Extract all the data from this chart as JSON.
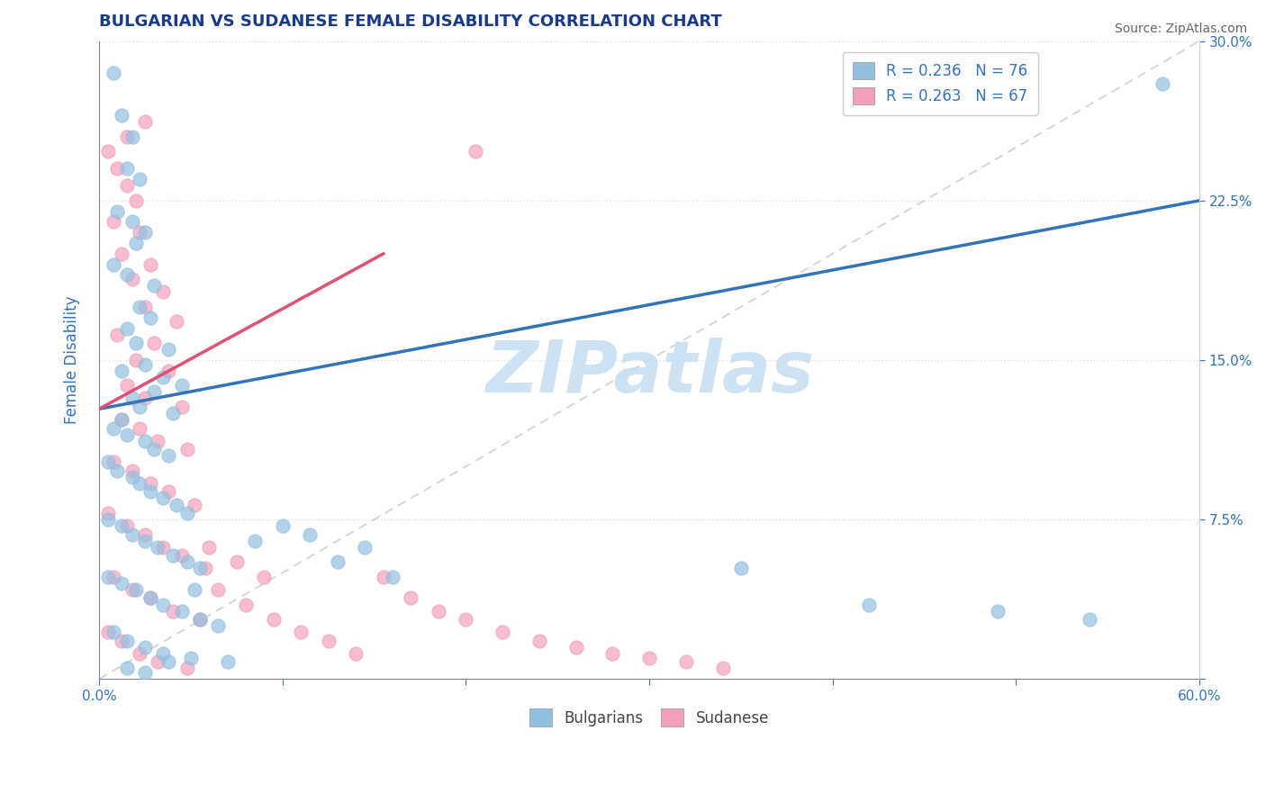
{
  "title": "BULGARIAN VS SUDANESE FEMALE DISABILITY CORRELATION CHART",
  "source_text": "Source: ZipAtlas.com",
  "ylabel": "Female Disability",
  "xlim": [
    0.0,
    0.6
  ],
  "ylim": [
    0.0,
    0.3
  ],
  "xtick_vals": [
    0.0,
    0.1,
    0.2,
    0.3,
    0.4,
    0.5,
    0.6
  ],
  "xtick_labels": [
    "0.0%",
    "",
    "",
    "",
    "",
    "",
    "60.0%"
  ],
  "ytick_vals": [
    0.0,
    0.075,
    0.15,
    0.225,
    0.3
  ],
  "ytick_labels": [
    "",
    "7.5%",
    "15.0%",
    "22.5%",
    "30.0%"
  ],
  "legend_r_label_blue": "R = 0.236   N = 76",
  "legend_r_label_pink": "R = 0.263   N = 67",
  "blue_color": "#92c0e0",
  "pink_color": "#f4a0b8",
  "blue_line_color": "#3373b8",
  "pink_line_color": "#e05070",
  "ref_line_color": "#d0d0d0",
  "watermark_text": "ZIPatlas",
  "watermark_color": "#c5ddf0",
  "title_color": "#1a3a8a",
  "axis_label_color": "#3373b8",
  "tick_color": "#3373b8",
  "bg_color": "#ffffff",
  "grid_color": "#e0e0e0",
  "blue_trend_x": [
    0.0,
    0.6
  ],
  "blue_trend_y": [
    0.127,
    0.225
  ],
  "pink_trend_x": [
    0.0,
    0.155
  ],
  "pink_trend_y": [
    0.127,
    0.2
  ],
  "ref_line_x": [
    0.0,
    0.6
  ],
  "ref_line_y": [
    0.0,
    0.3
  ],
  "blue_dots": [
    [
      0.008,
      0.285
    ],
    [
      0.012,
      0.265
    ],
    [
      0.018,
      0.255
    ],
    [
      0.015,
      0.24
    ],
    [
      0.022,
      0.235
    ],
    [
      0.01,
      0.22
    ],
    [
      0.018,
      0.215
    ],
    [
      0.025,
      0.21
    ],
    [
      0.02,
      0.205
    ],
    [
      0.008,
      0.195
    ],
    [
      0.015,
      0.19
    ],
    [
      0.03,
      0.185
    ],
    [
      0.022,
      0.175
    ],
    [
      0.028,
      0.17
    ],
    [
      0.015,
      0.165
    ],
    [
      0.02,
      0.158
    ],
    [
      0.038,
      0.155
    ],
    [
      0.025,
      0.148
    ],
    [
      0.012,
      0.145
    ],
    [
      0.035,
      0.142
    ],
    [
      0.045,
      0.138
    ],
    [
      0.03,
      0.135
    ],
    [
      0.018,
      0.132
    ],
    [
      0.022,
      0.128
    ],
    [
      0.04,
      0.125
    ],
    [
      0.012,
      0.122
    ],
    [
      0.008,
      0.118
    ],
    [
      0.015,
      0.115
    ],
    [
      0.025,
      0.112
    ],
    [
      0.03,
      0.108
    ],
    [
      0.038,
      0.105
    ],
    [
      0.005,
      0.102
    ],
    [
      0.01,
      0.098
    ],
    [
      0.018,
      0.095
    ],
    [
      0.022,
      0.092
    ],
    [
      0.028,
      0.088
    ],
    [
      0.035,
      0.085
    ],
    [
      0.042,
      0.082
    ],
    [
      0.048,
      0.078
    ],
    [
      0.005,
      0.075
    ],
    [
      0.012,
      0.072
    ],
    [
      0.018,
      0.068
    ],
    [
      0.025,
      0.065
    ],
    [
      0.032,
      0.062
    ],
    [
      0.04,
      0.058
    ],
    [
      0.048,
      0.055
    ],
    [
      0.055,
      0.052
    ],
    [
      0.005,
      0.048
    ],
    [
      0.012,
      0.045
    ],
    [
      0.02,
      0.042
    ],
    [
      0.028,
      0.038
    ],
    [
      0.035,
      0.035
    ],
    [
      0.045,
      0.032
    ],
    [
      0.055,
      0.028
    ],
    [
      0.065,
      0.025
    ],
    [
      0.008,
      0.022
    ],
    [
      0.015,
      0.018
    ],
    [
      0.025,
      0.015
    ],
    [
      0.035,
      0.012
    ],
    [
      0.05,
      0.01
    ],
    [
      0.07,
      0.008
    ],
    [
      0.085,
      0.065
    ],
    [
      0.1,
      0.072
    ],
    [
      0.115,
      0.068
    ],
    [
      0.13,
      0.055
    ],
    [
      0.145,
      0.062
    ],
    [
      0.16,
      0.048
    ],
    [
      0.35,
      0.052
    ],
    [
      0.42,
      0.035
    ],
    [
      0.49,
      0.032
    ],
    [
      0.54,
      0.028
    ],
    [
      0.58,
      0.28
    ],
    [
      0.015,
      0.005
    ],
    [
      0.025,
      0.003
    ],
    [
      0.038,
      0.008
    ],
    [
      0.052,
      0.042
    ]
  ],
  "pink_dots": [
    [
      0.005,
      0.248
    ],
    [
      0.01,
      0.24
    ],
    [
      0.015,
      0.232
    ],
    [
      0.02,
      0.225
    ],
    [
      0.008,
      0.215
    ],
    [
      0.022,
      0.21
    ],
    [
      0.012,
      0.2
    ],
    [
      0.028,
      0.195
    ],
    [
      0.018,
      0.188
    ],
    [
      0.035,
      0.182
    ],
    [
      0.025,
      0.175
    ],
    [
      0.042,
      0.168
    ],
    [
      0.01,
      0.162
    ],
    [
      0.03,
      0.158
    ],
    [
      0.02,
      0.15
    ],
    [
      0.038,
      0.145
    ],
    [
      0.015,
      0.138
    ],
    [
      0.025,
      0.132
    ],
    [
      0.045,
      0.128
    ],
    [
      0.012,
      0.122
    ],
    [
      0.022,
      0.118
    ],
    [
      0.032,
      0.112
    ],
    [
      0.048,
      0.108
    ],
    [
      0.008,
      0.102
    ],
    [
      0.018,
      0.098
    ],
    [
      0.028,
      0.092
    ],
    [
      0.038,
      0.088
    ],
    [
      0.052,
      0.082
    ],
    [
      0.005,
      0.078
    ],
    [
      0.015,
      0.072
    ],
    [
      0.025,
      0.068
    ],
    [
      0.035,
      0.062
    ],
    [
      0.045,
      0.058
    ],
    [
      0.058,
      0.052
    ],
    [
      0.008,
      0.048
    ],
    [
      0.018,
      0.042
    ],
    [
      0.028,
      0.038
    ],
    [
      0.04,
      0.032
    ],
    [
      0.055,
      0.028
    ],
    [
      0.005,
      0.022
    ],
    [
      0.012,
      0.018
    ],
    [
      0.022,
      0.012
    ],
    [
      0.032,
      0.008
    ],
    [
      0.048,
      0.005
    ],
    [
      0.065,
      0.042
    ],
    [
      0.08,
      0.035
    ],
    [
      0.095,
      0.028
    ],
    [
      0.11,
      0.022
    ],
    [
      0.125,
      0.018
    ],
    [
      0.14,
      0.012
    ],
    [
      0.205,
      0.248
    ],
    [
      0.015,
      0.255
    ],
    [
      0.025,
      0.262
    ],
    [
      0.06,
      0.062
    ],
    [
      0.075,
      0.055
    ],
    [
      0.09,
      0.048
    ],
    [
      0.155,
      0.048
    ],
    [
      0.17,
      0.038
    ],
    [
      0.185,
      0.032
    ],
    [
      0.2,
      0.028
    ],
    [
      0.22,
      0.022
    ],
    [
      0.24,
      0.018
    ],
    [
      0.26,
      0.015
    ],
    [
      0.28,
      0.012
    ],
    [
      0.3,
      0.01
    ],
    [
      0.32,
      0.008
    ],
    [
      0.34,
      0.005
    ]
  ]
}
